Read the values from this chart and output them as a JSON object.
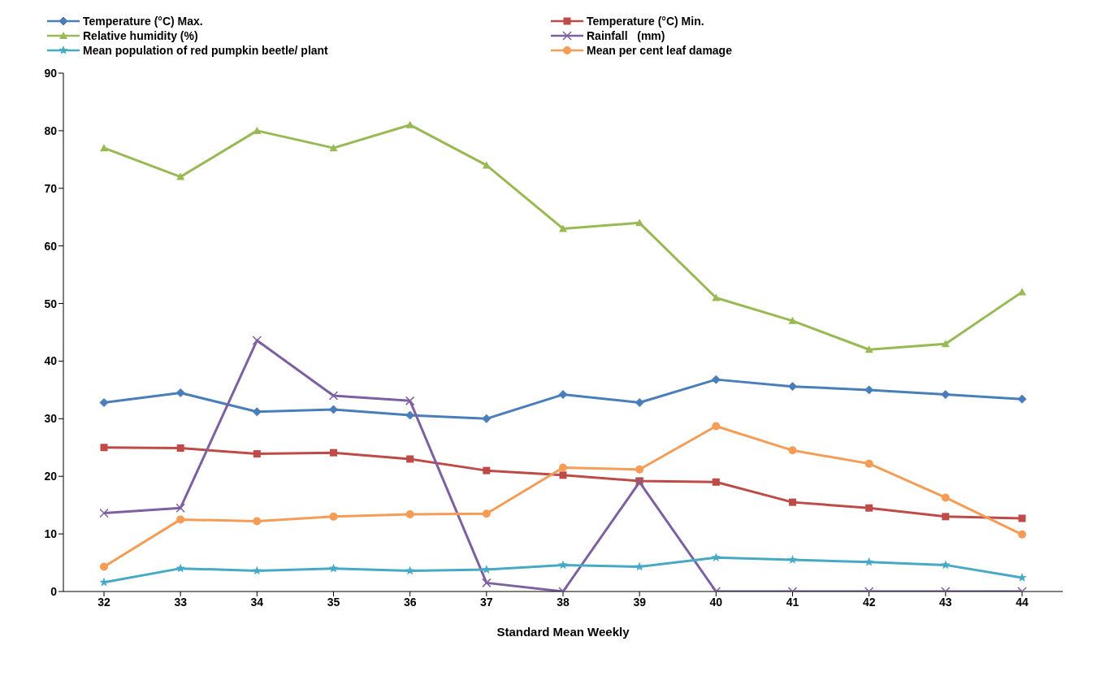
{
  "chart_data": {
    "type": "line",
    "xlabel": "Standard Mean Weekly",
    "categories": [
      "32",
      "33",
      "34",
      "35",
      "36",
      "37",
      "38",
      "39",
      "40",
      "41",
      "42",
      "43",
      "44"
    ],
    "ylim": [
      0,
      90
    ],
    "yticks": [
      0,
      10,
      20,
      30,
      40,
      50,
      60,
      70,
      80,
      90
    ],
    "grid": false,
    "legend": "top",
    "series": [
      {
        "name": "Temperature (°C) Max.",
        "color": "#4a7ebb",
        "marker": "diamond",
        "values": [
          32.8,
          34.5,
          31.2,
          31.6,
          30.6,
          30,
          34.2,
          32.8,
          36.8,
          35.6,
          35,
          34.2,
          33.4
        ]
      },
      {
        "name": "Temperature (°C) Min.",
        "color": "#be4b48",
        "marker": "square",
        "values": [
          25,
          24.9,
          23.9,
          24.1,
          23,
          21,
          20.2,
          19.2,
          19,
          15.5,
          14.5,
          13,
          12.7
        ]
      },
      {
        "name": "Relative humidity (%)",
        "color": "#98b954",
        "marker": "triangle",
        "values": [
          77,
          72,
          80,
          77,
          81,
          74,
          63,
          64,
          51,
          47,
          42,
          43,
          52
        ]
      },
      {
        "name": "Rainfall   (mm)",
        "color": "#7d60a0",
        "marker": "cross",
        "values": [
          13.6,
          14.5,
          43.6,
          34,
          33.1,
          1.5,
          0,
          19,
          0,
          0,
          0,
          0,
          0
        ]
      },
      {
        "name": "Mean population of red pumpkin beetle/ plant",
        "color": "#46aac5",
        "marker": "star",
        "values": [
          1.6,
          4,
          3.6,
          4,
          3.6,
          3.8,
          4.6,
          4.3,
          5.9,
          5.5,
          5.1,
          4.6,
          2.4
        ]
      },
      {
        "name": "Mean per cent leaf damage",
        "color": "#f59d56",
        "marker": "circle",
        "values": [
          4.3,
          12.5,
          12.2,
          13,
          13.4,
          13.5,
          21.5,
          21.2,
          28.7,
          24.5,
          22.2,
          16.3,
          9.9
        ]
      }
    ]
  }
}
